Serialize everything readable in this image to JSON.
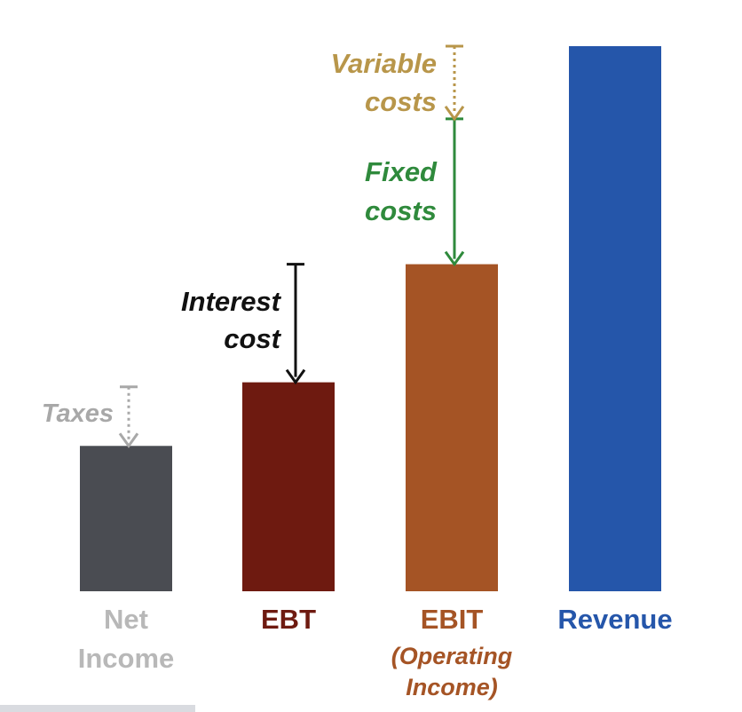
{
  "chart_data": {
    "type": "bar",
    "categories": [
      "Net Income",
      "EBT",
      "EBIT (Operating Income)",
      "Revenue"
    ],
    "category_labels": [
      {
        "lines": [
          "Net",
          "Income"
        ],
        "sub": []
      },
      {
        "lines": [
          "EBT"
        ],
        "sub": []
      },
      {
        "lines": [
          "EBIT"
        ],
        "sub": [
          "(Operating",
          "Income)"
        ]
      },
      {
        "lines": [
          "Revenue"
        ],
        "sub": []
      }
    ],
    "values": [
      16,
      23,
      36,
      60
    ],
    "ylim": [
      0,
      60
    ],
    "grid": false,
    "colors": {
      "net_income": "#4a4c52",
      "ebt": "#6e1a10",
      "ebit": "#a55425",
      "revenue": "#2556aa",
      "net_income_label": "#b8b8b8",
      "taxes": "#a8a8a8",
      "interest": "#111111",
      "fixed": "#2f8a3c",
      "variable": "#b8964a"
    },
    "annotations": [
      {
        "key": "taxes",
        "lines": [
          "Taxes"
        ],
        "from": 22.5,
        "to": 16,
        "style": "dotted"
      },
      {
        "key": "interest",
        "lines": [
          "Interest",
          "cost"
        ],
        "from": 36,
        "to": 23,
        "style": "solid"
      },
      {
        "key": "fixed",
        "lines": [
          "Fixed",
          "costs"
        ],
        "from": 52,
        "to": 36,
        "style": "solid"
      },
      {
        "key": "variable",
        "lines": [
          "Variable",
          "costs"
        ],
        "from": 60,
        "to": 52,
        "style": "dotted"
      }
    ]
  }
}
